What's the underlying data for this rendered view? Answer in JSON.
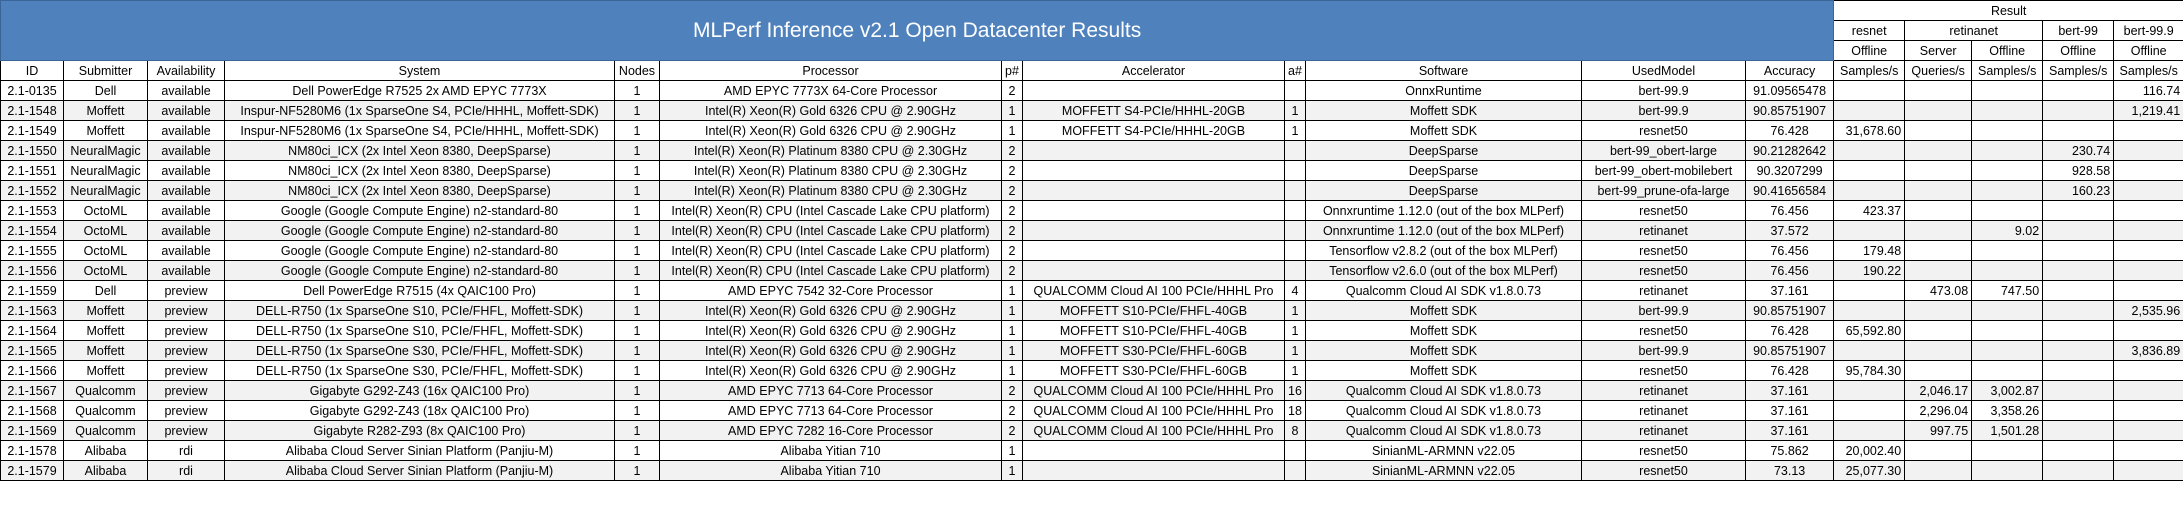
{
  "header": {
    "title": "MLPerf Inference v2.1 Open Datacenter Results",
    "result_label": "Result",
    "models": [
      "resnet",
      "retinanet",
      "bert-99",
      "bert-99.9"
    ],
    "scenarios": [
      "Offline",
      "Server",
      "Offline",
      "Offline",
      "Offline"
    ],
    "units": [
      "Samples/s",
      "Queries/s",
      "Samples/s",
      "Samples/s",
      "Samples/s"
    ],
    "columns": [
      "ID",
      "Submitter",
      "Availability",
      "System",
      "Nodes",
      "Processor",
      "p#",
      "Accelerator",
      "a#",
      "Software",
      "UsedModel",
      "Accuracy"
    ]
  },
  "table": {
    "rows": [
      [
        "2.1-0135",
        "Dell",
        "available",
        "Dell PowerEdge R7525 2x AMD EPYC 7773X",
        "1",
        "AMD EPYC 7773X 64-Core Processor",
        "2",
        null,
        null,
        "OnnxRuntime",
        "bert-99.9",
        "91.09565478",
        null,
        null,
        null,
        null,
        "116.74"
      ],
      [
        "2.1-1548",
        "Moffett",
        "available",
        "Inspur-NF5280M6 (1x SparseOne S4, PCIe/HHHL, Moffett-SDK)",
        "1",
        "Intel(R) Xeon(R) Gold 6326 CPU @ 2.90GHz",
        "1",
        "MOFFETT S4-PCIe/HHHL-20GB",
        "1",
        "Moffett SDK",
        "bert-99.9",
        "90.85751907",
        null,
        null,
        null,
        null,
        "1,219.41"
      ],
      [
        "2.1-1549",
        "Moffett",
        "available",
        "Inspur-NF5280M6 (1x SparseOne S4, PCIe/HHHL, Moffett-SDK)",
        "1",
        "Intel(R) Xeon(R) Gold 6326 CPU @ 2.90GHz",
        "1",
        "MOFFETT S4-PCIe/HHHL-20GB",
        "1",
        "Moffett SDK",
        "resnet50",
        "76.428",
        "31,678.60",
        null,
        null,
        null,
        null
      ],
      [
        "2.1-1550",
        "NeuralMagic",
        "available",
        "NM80ci_ICX (2x Intel Xeon 8380, DeepSparse)",
        "1",
        "Intel(R) Xeon(R) Platinum 8380 CPU @ 2.30GHz",
        "2",
        null,
        null,
        "DeepSparse",
        "bert-99_obert-large",
        "90.21282642",
        null,
        null,
        null,
        "230.74",
        null
      ],
      [
        "2.1-1551",
        "NeuralMagic",
        "available",
        "NM80ci_ICX (2x Intel Xeon 8380, DeepSparse)",
        "1",
        "Intel(R) Xeon(R) Platinum 8380 CPU @ 2.30GHz",
        "2",
        null,
        null,
        "DeepSparse",
        "bert-99_obert-mobilebert",
        "90.3207299",
        null,
        null,
        null,
        "928.58",
        null
      ],
      [
        "2.1-1552",
        "NeuralMagic",
        "available",
        "NM80ci_ICX (2x Intel Xeon 8380, DeepSparse)",
        "1",
        "Intel(R) Xeon(R) Platinum 8380 CPU @ 2.30GHz",
        "2",
        null,
        null,
        "DeepSparse",
        "bert-99_prune-ofa-large",
        "90.41656584",
        null,
        null,
        null,
        "160.23",
        null
      ],
      [
        "2.1-1553",
        "OctoML",
        "available",
        "Google (Google Compute Engine) n2-standard-80",
        "1",
        "Intel(R) Xeon(R) CPU (Intel Cascade Lake CPU platform)",
        "2",
        null,
        null,
        "Onnxruntime 1.12.0 (out of the box MLPerf)",
        "resnet50",
        "76.456",
        "423.37",
        null,
        null,
        null,
        null
      ],
      [
        "2.1-1554",
        "OctoML",
        "available",
        "Google (Google Compute Engine) n2-standard-80",
        "1",
        "Intel(R) Xeon(R) CPU (Intel Cascade Lake CPU platform)",
        "2",
        null,
        null,
        "Onnxruntime 1.12.0 (out of the box MLPerf)",
        "retinanet",
        "37.572",
        null,
        null,
        "9.02",
        null,
        null
      ],
      [
        "2.1-1555",
        "OctoML",
        "available",
        "Google (Google Compute Engine) n2-standard-80",
        "1",
        "Intel(R) Xeon(R) CPU (Intel Cascade Lake CPU platform)",
        "2",
        null,
        null,
        "Tensorflow v2.8.2 (out of the box MLPerf)",
        "resnet50",
        "76.456",
        "179.48",
        null,
        null,
        null,
        null
      ],
      [
        "2.1-1556",
        "OctoML",
        "available",
        "Google (Google Compute Engine) n2-standard-80",
        "1",
        "Intel(R) Xeon(R) CPU (Intel Cascade Lake CPU platform)",
        "2",
        null,
        null,
        "Tensorflow v2.6.0 (out of the box MLPerf)",
        "resnet50",
        "76.456",
        "190.22",
        null,
        null,
        null,
        null
      ],
      [
        "2.1-1559",
        "Dell",
        "preview",
        "Dell PowerEdge R7515 (4x QAIC100 Pro)",
        "1",
        "AMD EPYC 7542 32-Core Processor",
        "1",
        "QUALCOMM Cloud AI 100 PCIe/HHHL Pro",
        "4",
        "Qualcomm Cloud AI SDK v1.8.0.73",
        "retinanet",
        "37.161",
        null,
        "473.08",
        "747.50",
        null,
        null
      ],
      [
        "2.1-1563",
        "Moffett",
        "preview",
        "DELL-R750 (1x SparseOne S10, PCIe/FHFL, Moffett-SDK)",
        "1",
        "Intel(R) Xeon(R) Gold 6326 CPU @ 2.90GHz",
        "1",
        "MOFFETT S10-PCIe/FHFL-40GB",
        "1",
        "Moffett SDK",
        "bert-99.9",
        "90.85751907",
        null,
        null,
        null,
        null,
        "2,535.96"
      ],
      [
        "2.1-1564",
        "Moffett",
        "preview",
        "DELL-R750 (1x SparseOne S10, PCIe/FHFL, Moffett-SDK)",
        "1",
        "Intel(R) Xeon(R) Gold 6326 CPU @ 2.90GHz",
        "1",
        "MOFFETT S10-PCIe/FHFL-40GB",
        "1",
        "Moffett SDK",
        "resnet50",
        "76.428",
        "65,592.80",
        null,
        null,
        null,
        null
      ],
      [
        "2.1-1565",
        "Moffett",
        "preview",
        "DELL-R750 (1x SparseOne S30, PCIe/FHFL, Moffett-SDK)",
        "1",
        "Intel(R) Xeon(R) Gold 6326 CPU @ 2.90GHz",
        "1",
        "MOFFETT S30-PCIe/FHFL-60GB",
        "1",
        "Moffett SDK",
        "bert-99.9",
        "90.85751907",
        null,
        null,
        null,
        null,
        "3,836.89"
      ],
      [
        "2.1-1566",
        "Moffett",
        "preview",
        "DELL-R750 (1x SparseOne S30, PCIe/FHFL, Moffett-SDK)",
        "1",
        "Intel(R) Xeon(R) Gold 6326 CPU @ 2.90GHz",
        "1",
        "MOFFETT S30-PCIe/FHFL-60GB",
        "1",
        "Moffett SDK",
        "resnet50",
        "76.428",
        "95,784.30",
        null,
        null,
        null,
        null
      ],
      [
        "2.1-1567",
        "Qualcomm",
        "preview",
        "Gigabyte G292-Z43 (16x QAIC100 Pro)",
        "1",
        "AMD EPYC 7713 64-Core Processor",
        "2",
        "QUALCOMM Cloud AI 100 PCIe/HHHL Pro",
        "16",
        "Qualcomm Cloud AI SDK v1.8.0.73",
        "retinanet",
        "37.161",
        null,
        "2,046.17",
        "3,002.87",
        null,
        null
      ],
      [
        "2.1-1568",
        "Qualcomm",
        "preview",
        "Gigabyte G292-Z43 (18x QAIC100 Pro)",
        "1",
        "AMD EPYC 7713 64-Core Processor",
        "2",
        "QUALCOMM Cloud AI 100 PCIe/HHHL Pro",
        "18",
        "Qualcomm Cloud AI SDK v1.8.0.73",
        "retinanet",
        "37.161",
        null,
        "2,296.04",
        "3,358.26",
        null,
        null
      ],
      [
        "2.1-1569",
        "Qualcomm",
        "preview",
        "Gigabyte R282-Z93 (8x QAIC100 Pro)",
        "1",
        "AMD EPYC 7282 16-Core Processor",
        "2",
        "QUALCOMM Cloud AI 100 PCIe/HHHL Pro",
        "8",
        "Qualcomm Cloud AI SDK v1.8.0.73",
        "retinanet",
        "37.161",
        null,
        "997.75",
        "1,501.28",
        null,
        null
      ],
      [
        "2.1-1578",
        "Alibaba",
        "rdi",
        "Alibaba Cloud Server Sinian Platform (Panjiu-M)",
        "1",
        "Alibaba Yitian 710",
        "1",
        null,
        null,
        "SinianML-ARMNN v22.05",
        "resnet50",
        "75.862",
        "20,002.40",
        null,
        null,
        null,
        null
      ],
      [
        "2.1-1579",
        "Alibaba",
        "rdi",
        "Alibaba Cloud Server Sinian Platform (Panjiu-M)",
        "1",
        "Alibaba Yitian 710",
        "1",
        null,
        null,
        "SinianML-ARMNN v22.05",
        "resnet50",
        "73.13",
        "25,077.30",
        null,
        null,
        null,
        null
      ]
    ]
  }
}
